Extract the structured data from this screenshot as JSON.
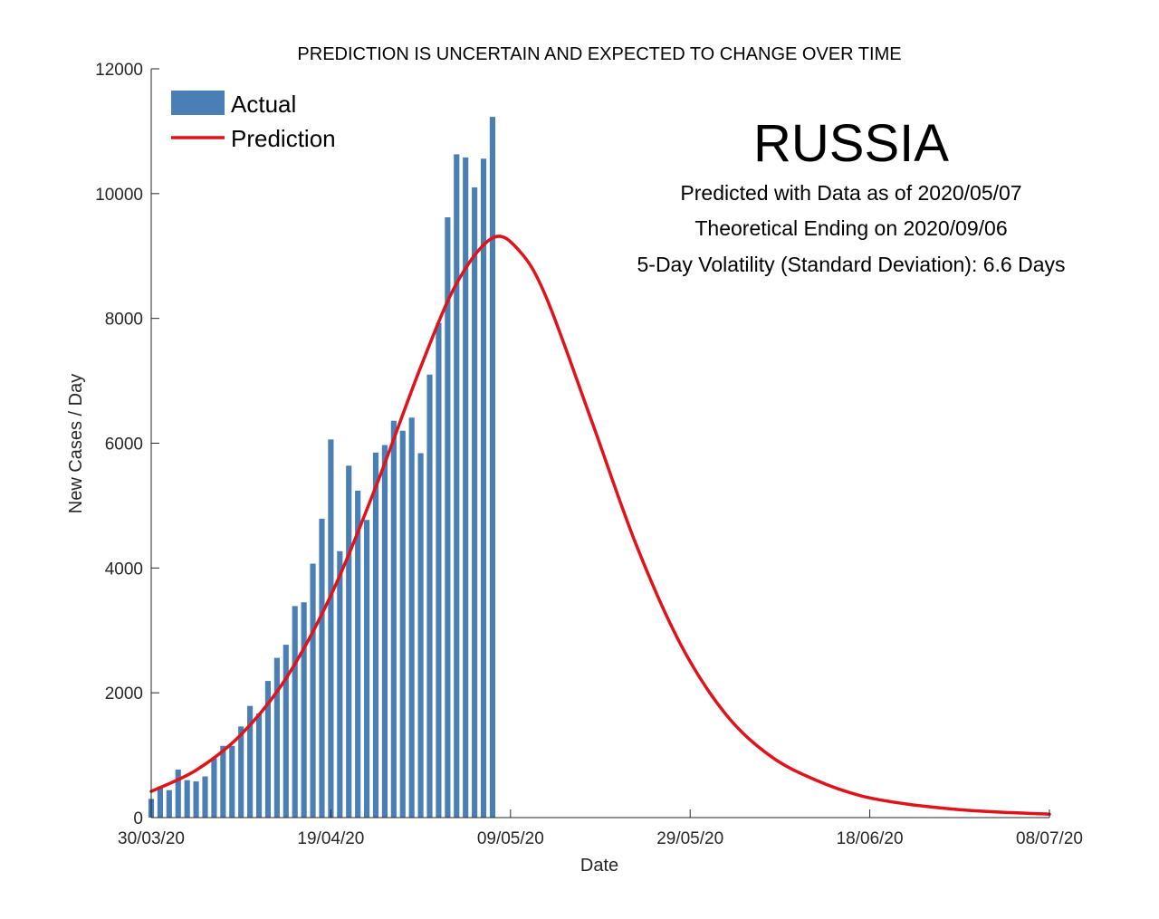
{
  "chart_data": {
    "type": "bar",
    "title": "PREDICTION IS UNCERTAIN AND EXPECTED TO CHANGE OVER TIME",
    "xlabel": "Date",
    "ylabel": "New Cases / Day",
    "ylim": [
      0,
      12000
    ],
    "yticks": [
      0,
      2000,
      4000,
      6000,
      8000,
      10000,
      12000
    ],
    "x_start_date": "2020-03-30",
    "x_end_date": "2020-07-08",
    "xticks": [
      {
        "date": "2020-03-30",
        "label": "30/03/20"
      },
      {
        "date": "2020-04-19",
        "label": "19/04/20"
      },
      {
        "date": "2020-05-09",
        "label": "09/05/20"
      },
      {
        "date": "2020-05-29",
        "label": "29/05/20"
      },
      {
        "date": "2020-06-18",
        "label": "18/06/20"
      },
      {
        "date": "2020-07-08",
        "label": "08/07/20"
      }
    ],
    "grid": false,
    "legend_position": "top-left",
    "colors": {
      "actual": "#4a7fb5",
      "prediction": "#e0131a"
    },
    "series": [
      {
        "name": "Actual",
        "type": "bar",
        "dates": [
          "2020-03-30",
          "2020-03-31",
          "2020-04-01",
          "2020-04-02",
          "2020-04-03",
          "2020-04-04",
          "2020-04-05",
          "2020-04-06",
          "2020-04-07",
          "2020-04-08",
          "2020-04-09",
          "2020-04-10",
          "2020-04-11",
          "2020-04-12",
          "2020-04-13",
          "2020-04-14",
          "2020-04-15",
          "2020-04-16",
          "2020-04-17",
          "2020-04-18",
          "2020-04-19",
          "2020-04-20",
          "2020-04-21",
          "2020-04-22",
          "2020-04-23",
          "2020-04-24",
          "2020-04-25",
          "2020-04-26",
          "2020-04-27",
          "2020-04-28",
          "2020-04-29",
          "2020-04-30",
          "2020-05-01",
          "2020-05-02",
          "2020-05-03",
          "2020-05-04",
          "2020-05-05",
          "2020-05-06",
          "2020-05-07"
        ],
        "values": [
          300,
          500,
          440,
          770,
          600,
          580,
          660,
          950,
          1150,
          1150,
          1460,
          1790,
          1670,
          2190,
          2560,
          2770,
          3390,
          3450,
          4070,
          4790,
          6060,
          4270,
          5640,
          5240,
          4770,
          5850,
          5970,
          6360,
          6200,
          6410,
          5840,
          7100,
          7930,
          9620,
          10630,
          10580,
          10100,
          10560,
          11230
        ]
      },
      {
        "name": "Prediction",
        "type": "line",
        "points": [
          {
            "date": "2020-03-30",
            "y": 420
          },
          {
            "date": "2020-04-04",
            "y": 760
          },
          {
            "date": "2020-04-09",
            "y": 1330
          },
          {
            "date": "2020-04-14",
            "y": 2230
          },
          {
            "date": "2020-04-19",
            "y": 3560
          },
          {
            "date": "2020-04-24",
            "y": 5300
          },
          {
            "date": "2020-04-29",
            "y": 7220
          },
          {
            "date": "2020-05-03",
            "y": 8560
          },
          {
            "date": "2020-05-07",
            "y": 9290
          },
          {
            "date": "2020-05-10",
            "y": 9080
          },
          {
            "date": "2020-05-13",
            "y": 8330
          },
          {
            "date": "2020-05-18",
            "y": 6370
          },
          {
            "date": "2020-05-23",
            "y": 4370
          },
          {
            "date": "2020-05-28",
            "y": 2760
          },
          {
            "date": "2020-06-02",
            "y": 1650
          },
          {
            "date": "2020-06-07",
            "y": 980
          },
          {
            "date": "2020-06-12",
            "y": 600
          },
          {
            "date": "2020-06-17",
            "y": 350
          },
          {
            "date": "2020-06-22",
            "y": 220
          },
          {
            "date": "2020-06-27",
            "y": 140
          },
          {
            "date": "2020-07-02",
            "y": 90
          },
          {
            "date": "2020-07-08",
            "y": 55
          }
        ]
      }
    ],
    "annotations": {
      "country": "RUSSIA",
      "lines": [
        "Predicted with Data as of 2020/05/07",
        "Theoretical Ending on 2020/09/06",
        "5-Day Volatility (Standard Deviation): 6.6 Days"
      ]
    }
  }
}
